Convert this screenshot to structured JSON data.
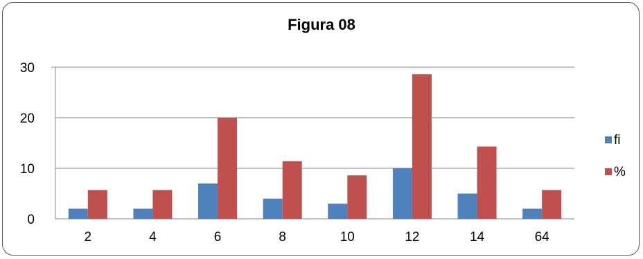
{
  "chart_data": {
    "type": "bar",
    "title": "Figura   08",
    "categories": [
      "2",
      "4",
      "6",
      "8",
      "10",
      "12",
      "14",
      "64"
    ],
    "series": [
      {
        "name": "fi",
        "color": "#4F81BD",
        "values": [
          2,
          2,
          7,
          4,
          3,
          10,
          5,
          2
        ]
      },
      {
        "name": "%",
        "color": "#C0504D",
        "values": [
          5.7,
          5.7,
          20,
          11.4,
          8.6,
          28.6,
          14.3,
          5.7
        ]
      }
    ],
    "ylim": [
      0,
      30
    ],
    "yticks": [
      0,
      10,
      20,
      30
    ],
    "grid": true,
    "legend_position": "right"
  }
}
